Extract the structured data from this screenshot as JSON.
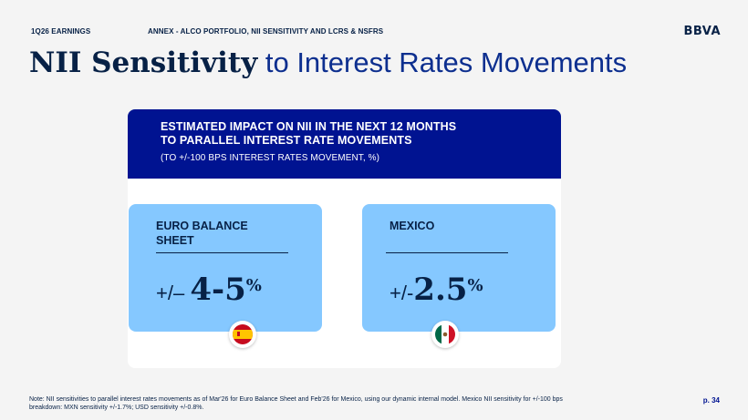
{
  "header": {
    "section": "1Q26 EARNINGS",
    "annex": "ANNEX - ALCO PORTFOLIO, NII SENSITIVITY AND LCRS & NSFRS",
    "logo": "BBVA"
  },
  "title": {
    "strong": "NII Sensitivity",
    "rest": " to Interest Rates Movements"
  },
  "card": {
    "heading_line1": "ESTIMATED IMPACT ON NII IN THE NEXT 12 MONTHS",
    "heading_line2": "TO PARALLEL INTEREST RATE MOVEMENTS",
    "subheading": "(TO +/-100 BPS INTEREST RATES MOVEMENT, %)"
  },
  "panels": [
    {
      "label_line1": "EURO BALANCE",
      "label_line2": "SHEET",
      "prefix": "+/– ",
      "value": "4-5",
      "unit": "%",
      "flag": "spain-flag-icon"
    },
    {
      "label_line1": "MEXICO",
      "label_line2": "",
      "prefix": "+/-",
      "value": "2.5",
      "unit": "%",
      "flag": "mexico-flag-icon"
    }
  ],
  "colors": {
    "navy": "#072146",
    "header_blue": "#001391",
    "panel_blue": "#85c8ff",
    "background": "#f4f4f4"
  },
  "footer": {
    "note_line1": "Note: NII sensitivities to parallel interest rates movements as of Mar'26 for Euro Balance Sheet and Feb'26 for Mexico, using our dynamic internal model. Mexico NII sensitivity for +/-100 bps",
    "note_line2": "breakdown: MXN sensitivity +/-1.7%; USD sensitivity +/-0.8%.",
    "page": "p. 34"
  }
}
